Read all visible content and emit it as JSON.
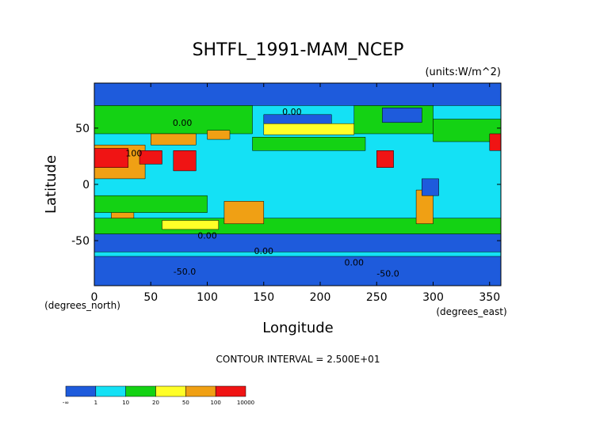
{
  "chart_data": {
    "type": "heatmap",
    "title": "SHTFL_1991-MAM_NCEP",
    "units_label": "(units:W/m^2)",
    "xlabel": "Longitude",
    "ylabel": "Latitude",
    "x_unit_label": "(degrees_east)",
    "y_unit_label": "(degrees_north)",
    "xlim": [
      0,
      360
    ],
    "ylim": [
      -90,
      90
    ],
    "x_ticks": [
      0,
      50,
      100,
      150,
      200,
      250,
      300,
      350
    ],
    "y_ticks": [
      -50,
      0,
      50
    ],
    "contour_interval_text": "CONTOUR INTERVAL = 2.500E+01",
    "contour_labels": [
      "0.00",
      "0.00",
      "0.00",
      "0.00",
      "100",
      "-50.0",
      "-50.0",
      "0.00"
    ],
    "levels": [
      "-∞",
      "1",
      "10",
      "20",
      "50",
      "100",
      "10000"
    ],
    "colors": [
      "#1e5bdc",
      "#14e1f5",
      "#14d214",
      "#ffff28",
      "#f0a014",
      "#f01414"
    ],
    "background_color": "#14e1f5",
    "regions": [
      {
        "name": "southern-ocean-band",
        "value_class": 0,
        "poly": [
          [
            0,
            -60
          ],
          [
            360,
            -60
          ],
          [
            360,
            -44
          ],
          [
            0,
            -44
          ]
        ]
      },
      {
        "name": "antarctica",
        "value_class": 0,
        "poly": [
          [
            0,
            -90
          ],
          [
            360,
            -90
          ],
          [
            360,
            -64
          ],
          [
            0,
            -64
          ]
        ]
      },
      {
        "name": "south-hem-green-belt",
        "value_class": 2,
        "poly": [
          [
            0,
            -44
          ],
          [
            360,
            -44
          ],
          [
            360,
            -30
          ],
          [
            0,
            -30
          ]
        ]
      },
      {
        "name": "south-indian-yellow",
        "value_class": 3,
        "poly": [
          [
            60,
            -40
          ],
          [
            110,
            -40
          ],
          [
            110,
            -32
          ],
          [
            60,
            -32
          ]
        ]
      },
      {
        "name": "north-atlantic-green",
        "value_class": 2,
        "poly": [
          [
            300,
            38
          ],
          [
            360,
            38
          ],
          [
            360,
            58
          ],
          [
            300,
            58
          ]
        ]
      },
      {
        "name": "north-pacific-green",
        "value_class": 2,
        "poly": [
          [
            140,
            30
          ],
          [
            240,
            30
          ],
          [
            240,
            42
          ],
          [
            140,
            42
          ]
        ]
      },
      {
        "name": "north-pacific-yellow",
        "value_class": 3,
        "poly": [
          [
            150,
            44
          ],
          [
            230,
            44
          ],
          [
            230,
            54
          ],
          [
            150,
            54
          ]
        ]
      },
      {
        "name": "north-pacific-blue",
        "value_class": 0,
        "poly": [
          [
            150,
            54
          ],
          [
            210,
            54
          ],
          [
            210,
            62
          ],
          [
            150,
            62
          ]
        ]
      },
      {
        "name": "arctic-blue",
        "value_class": 0,
        "poly": [
          [
            0,
            70
          ],
          [
            360,
            70
          ],
          [
            360,
            90
          ],
          [
            0,
            90
          ]
        ]
      },
      {
        "name": "eurasia-green",
        "value_class": 2,
        "poly": [
          [
            0,
            45
          ],
          [
            140,
            45
          ],
          [
            140,
            70
          ],
          [
            0,
            70
          ]
        ]
      },
      {
        "name": "north-america-green",
        "value_class": 2,
        "poly": [
          [
            230,
            45
          ],
          [
            300,
            45
          ],
          [
            300,
            70
          ],
          [
            230,
            70
          ]
        ]
      },
      {
        "name": "canada-blue",
        "value_class": 0,
        "poly": [
          [
            255,
            55
          ],
          [
            290,
            55
          ],
          [
            290,
            68
          ],
          [
            255,
            68
          ]
        ]
      },
      {
        "name": "africa-orange",
        "value_class": 4,
        "poly": [
          [
            0,
            5
          ],
          [
            45,
            5
          ],
          [
            45,
            35
          ],
          [
            0,
            35
          ]
        ]
      },
      {
        "name": "sahara-red",
        "value_class": 5,
        "poly": [
          [
            0,
            15
          ],
          [
            30,
            15
          ],
          [
            30,
            32
          ],
          [
            0,
            32
          ]
        ]
      },
      {
        "name": "arabia-red",
        "value_class": 5,
        "poly": [
          [
            40,
            18
          ],
          [
            60,
            18
          ],
          [
            60,
            30
          ],
          [
            40,
            30
          ]
        ]
      },
      {
        "name": "india-red",
        "value_class": 5,
        "poly": [
          [
            70,
            12
          ],
          [
            90,
            12
          ],
          [
            90,
            30
          ],
          [
            70,
            30
          ]
        ]
      },
      {
        "name": "central-asia-orange",
        "value_class": 4,
        "poly": [
          [
            50,
            35
          ],
          [
            90,
            35
          ],
          [
            90,
            45
          ],
          [
            50,
            45
          ]
        ]
      },
      {
        "name": "tibet-orange",
        "value_class": 4,
        "poly": [
          [
            100,
            40
          ],
          [
            120,
            40
          ],
          [
            120,
            48
          ],
          [
            100,
            48
          ]
        ]
      },
      {
        "name": "africa-south-orange",
        "value_class": 4,
        "poly": [
          [
            15,
            -30
          ],
          [
            35,
            -30
          ],
          [
            35,
            -15
          ],
          [
            15,
            -15
          ]
        ]
      },
      {
        "name": "australia-orange",
        "value_class": 4,
        "poly": [
          [
            115,
            -35
          ],
          [
            150,
            -35
          ],
          [
            150,
            -15
          ],
          [
            115,
            -15
          ]
        ]
      },
      {
        "name": "south-america-orange",
        "value_class": 4,
        "poly": [
          [
            285,
            -35
          ],
          [
            300,
            -35
          ],
          [
            300,
            -5
          ],
          [
            285,
            -5
          ]
        ]
      },
      {
        "name": "mexico-red",
        "value_class": 5,
        "poly": [
          [
            250,
            15
          ],
          [
            265,
            15
          ],
          [
            265,
            30
          ],
          [
            250,
            30
          ]
        ]
      },
      {
        "name": "iberia-red",
        "value_class": 5,
        "poly": [
          [
            350,
            30
          ],
          [
            360,
            30
          ],
          [
            360,
            45
          ],
          [
            350,
            45
          ]
        ]
      },
      {
        "name": "amazon-blue",
        "value_class": 0,
        "poly": [
          [
            290,
            -10
          ],
          [
            305,
            -10
          ],
          [
            305,
            5
          ],
          [
            290,
            5
          ]
        ]
      },
      {
        "name": "equatorial-green",
        "value_class": 2,
        "poly": [
          [
            0,
            -25
          ],
          [
            100,
            -25
          ],
          [
            100,
            -10
          ],
          [
            0,
            -10
          ]
        ]
      }
    ]
  }
}
